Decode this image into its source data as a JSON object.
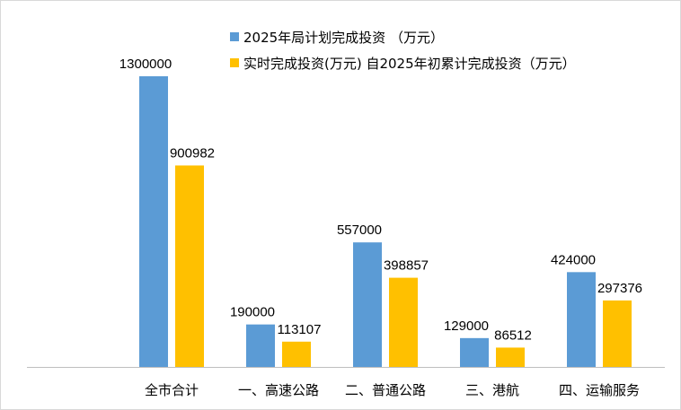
{
  "chart_data": {
    "type": "bar",
    "categories": [
      "全市合计",
      "一、高速公路",
      "二、普通公路",
      "三、港航",
      "四、运输服务"
    ],
    "series": [
      {
        "name": "2025年局计划完成投资 （万元）",
        "color": "#5b9bd5",
        "values": [
          1300000,
          190000,
          557000,
          129000,
          424000
        ]
      },
      {
        "name": "实时完成投资(万元) 自2025年初累计完成投资（万元）",
        "color": "#ffc000",
        "values": [
          900982,
          113107,
          398857,
          86512,
          297376
        ]
      }
    ],
    "ylim": [
      0,
      1300000
    ],
    "grid": false,
    "legend": "top-center"
  }
}
